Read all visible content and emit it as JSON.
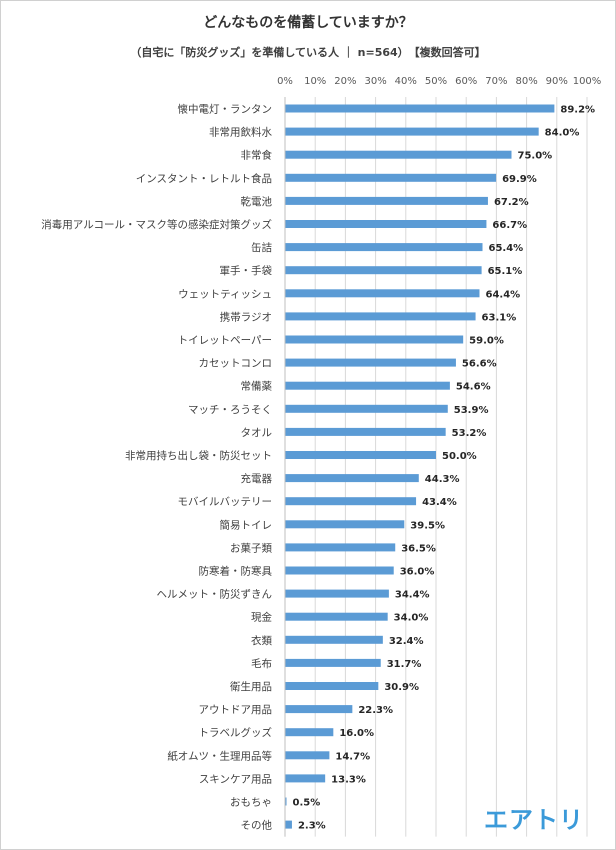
{
  "chart_data": {
    "type": "bar",
    "orientation": "horizontal",
    "title": "どんなものを備蓄していますか？",
    "subtitle": "（自宅に「防災グッズ」を準備している人 ｜ n=564）　【複数回答可】",
    "categories": [
      "懐中電灯・ランタン",
      "非常用飲料水",
      "非常食",
      "インスタント・レトルト食品",
      "乾電池",
      "消毒用アルコール・マスク等の感染症対策グッズ",
      "缶詰",
      "軍手・手袋",
      "ウェットティッシュ",
      "携帯ラジオ",
      "トイレットペーパー",
      "カセットコンロ",
      "常備薬",
      "マッチ・ろうそく",
      "タオル",
      "非常用持ち出し袋・防災セット",
      "充電器",
      "モバイルバッテリー",
      "簡易トイレ",
      "お菓子類",
      "防寒着・防寒具",
      "ヘルメット・防災ずきん",
      "現金",
      "衣類",
      "毛布",
      "衛生用品",
      "アウトドア用品",
      "トラベルグッズ",
      "紙オムツ・生理用品等",
      "スキンケア用品",
      "おもちゃ",
      "その他"
    ],
    "values": [
      89.2,
      84.0,
      75.0,
      69.9,
      67.2,
      66.7,
      65.4,
      65.1,
      64.4,
      63.1,
      59.0,
      56.6,
      54.6,
      53.9,
      53.2,
      50.0,
      44.3,
      43.4,
      39.5,
      36.5,
      36.0,
      34.4,
      34.0,
      32.4,
      31.7,
      30.9,
      22.3,
      16.0,
      14.7,
      13.3,
      0.5,
      2.3
    ],
    "value_labels": [
      "89.2%",
      "84.0%",
      "75.0%",
      "69.9%",
      "67.2%",
      "66.7%",
      "65.4%",
      "65.1%",
      "64.4%",
      "63.1%",
      "59.0%",
      "56.6%",
      "54.6%",
      "53.9%",
      "53.2%",
      "50.0%",
      "44.3%",
      "43.4%",
      "39.5%",
      "36.5%",
      "36.0%",
      "34.4%",
      "34.0%",
      "32.4%",
      "31.7%",
      "30.9%",
      "22.3%",
      "16.0%",
      "14.7%",
      "13.3%",
      "0.5%",
      "2.3%"
    ],
    "xlim": [
      0,
      100
    ],
    "x_ticks": [
      "0%",
      "10%",
      "20%",
      "30%",
      "40%",
      "50%",
      "60%",
      "70%",
      "80%",
      "90%",
      "100%"
    ],
    "grid": true,
    "legend": "none",
    "bar_color": "#5b9bd5"
  },
  "logo": {
    "text": "エアトリ",
    "color": "#3b9ad9"
  }
}
